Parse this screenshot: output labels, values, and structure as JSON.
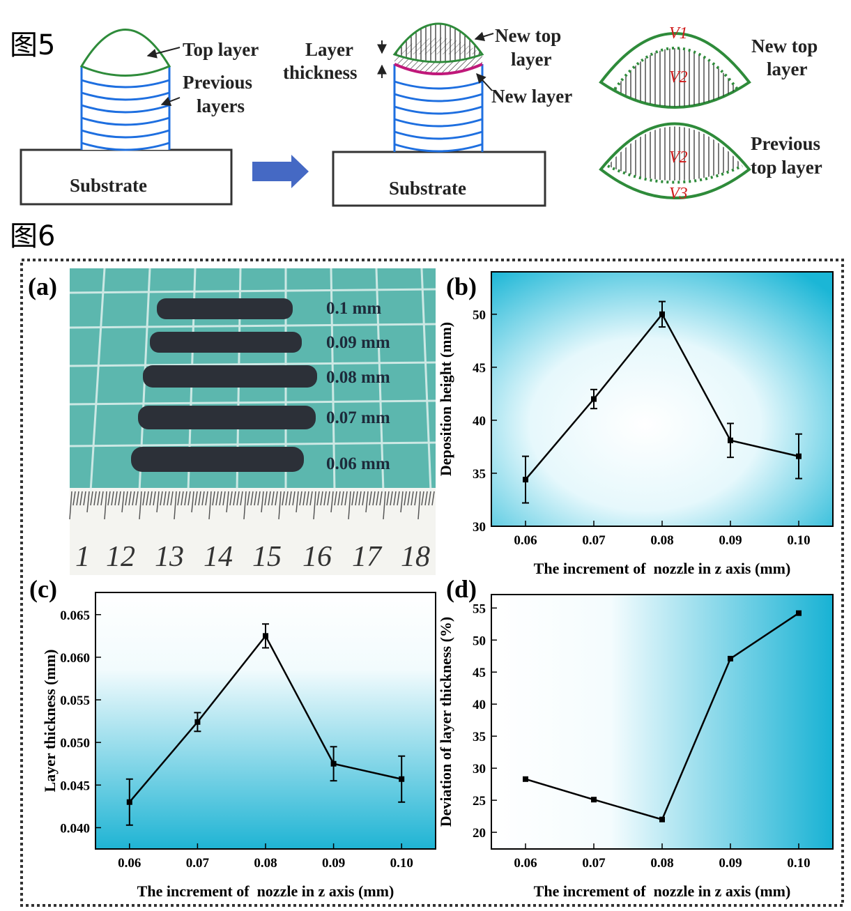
{
  "fig5": {
    "label": "图5",
    "left": {
      "top_layer": "Top layer",
      "previous_layers": [
        "Previous",
        "layers"
      ],
      "substrate": "Substrate"
    },
    "middle": {
      "layer_thickness": [
        "Layer",
        "thickness"
      ],
      "new_top_layer": [
        "New top",
        "layer"
      ],
      "new_layer": "New layer",
      "substrate": "Substrate"
    },
    "right": {
      "upper": [
        "New top",
        "layer"
      ],
      "lower": [
        "Previous",
        "top layer"
      ],
      "symbols": [
        "V1",
        "V2",
        "V2",
        "V3"
      ]
    }
  },
  "fig6": {
    "label": "图6",
    "panel_a": {
      "panel": "(a)",
      "lengths": [
        "0.1 mm",
        "0.09 mm",
        "0.08 mm",
        "0.07 mm",
        "0.06 mm"
      ],
      "ruler": [
        "1",
        "12",
        "13",
        "14",
        "15",
        "16",
        "17",
        "18"
      ]
    }
  },
  "chart_data": [
    {
      "type": "line",
      "panel": "(b)",
      "x_label": "The increment of  nozzle in z axis (mm)",
      "y_label": "Deposition height (mm)",
      "categories": [
        "0.06",
        "0.07",
        "0.08",
        "0.09",
        "0.10"
      ],
      "values": [
        34.4,
        42.0,
        50.0,
        38.1,
        36.6
      ],
      "errors": [
        2.2,
        0.9,
        1.2,
        1.6,
        2.1
      ],
      "color": "#000000",
      "ylim": [
        30,
        54
      ],
      "yticks": [
        30,
        35,
        40,
        45,
        50
      ]
    },
    {
      "type": "line",
      "panel": "(c)",
      "x_label": "The increment of  nozzle in z axis (mm)",
      "y_label": "Layer thickness (mm)",
      "categories": [
        "0.06",
        "0.07",
        "0.08",
        "0.09",
        "0.10"
      ],
      "values": [
        0.043,
        0.0524,
        0.0625,
        0.0475,
        0.0457
      ],
      "errors": [
        0.0027,
        0.0011,
        0.0014,
        0.002,
        0.0027
      ],
      "color": "#000000",
      "ylim": [
        0.0375,
        0.0676
      ],
      "yticks": [
        {
          "value": 0.04,
          "label": "0.040"
        },
        {
          "value": 0.045,
          "label": "0.045"
        },
        {
          "value": 0.05,
          "label": "0.050"
        },
        {
          "value": 0.055,
          "label": "0.055"
        },
        {
          "value": 0.06,
          "label": "0.060"
        },
        {
          "value": 0.065,
          "label": "0.065"
        }
      ]
    },
    {
      "type": "line",
      "panel": "(d)",
      "x_label": "The increment of  nozzle in z axis (mm)",
      "y_label": "Deviation of layer thickness (%)",
      "categories": [
        "0.06",
        "0.07",
        "0.08",
        "0.09",
        "0.10"
      ],
      "values": [
        28.3,
        25.1,
        22.0,
        47.1,
        54.2
      ],
      "color": "#000000",
      "ylim": [
        17.4,
        57.1
      ],
      "yticks": [
        20,
        25,
        30,
        35,
        40,
        45,
        50,
        55
      ]
    }
  ]
}
